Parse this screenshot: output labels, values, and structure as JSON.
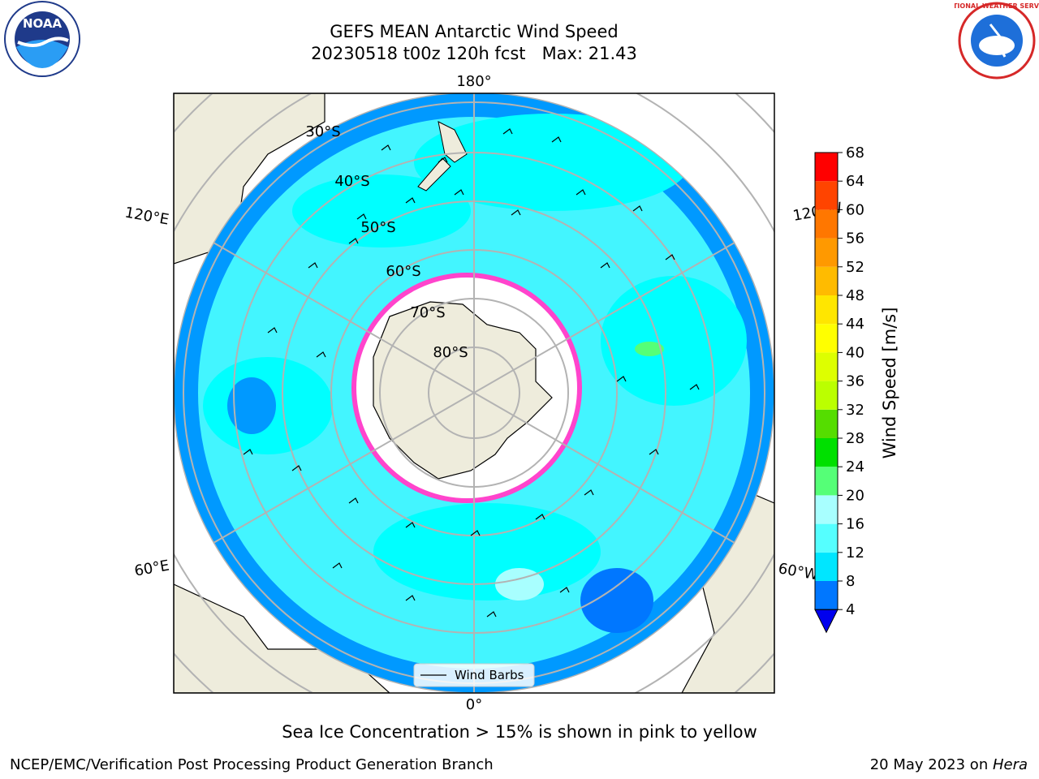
{
  "header": {
    "title_line1": "GEFS MEAN Antarctic Wind Speed",
    "title_line2": "20230518 t00z 120h fcst   Max: 21.43"
  },
  "logos": {
    "left": "NOAA",
    "right": "NATIONAL WEATHER SERVICE"
  },
  "map": {
    "projection": "south-polar-stereographic",
    "longitude_labels": {
      "top": "180°",
      "bottom": "0°",
      "upper_left": "120°E",
      "upper_right": "120°W",
      "lower_left": "60°E",
      "lower_right": "60°W"
    },
    "latitude_labels": [
      "30°S",
      "40°S",
      "50°S",
      "60°S",
      "70°S",
      "80°S"
    ],
    "legend": {
      "wind_barbs": "Wind Barbs"
    },
    "max_wind_speed": 21.43,
    "colors": {
      "land": "#eeecdc",
      "ocean_light": "#00ffff",
      "ocean_mid": "#43f5ff",
      "ocean_dark": "#0099ff",
      "sea_ice": "#ff44cc",
      "ice_white": "#ffffff",
      "grid": "#b3b3b3"
    }
  },
  "colorbar": {
    "label": "Wind Speed [m/s]",
    "ticks": [
      "4",
      "8",
      "12",
      "16",
      "20",
      "24",
      "28",
      "32",
      "36",
      "40",
      "44",
      "48",
      "52",
      "56",
      "60",
      "64",
      "68"
    ],
    "colors": [
      "#0077ff",
      "#00e6ff",
      "#55ffff",
      "#a8ffff",
      "#55ff77",
      "#00e000",
      "#55dd00",
      "#bbff00",
      "#ddff00",
      "#ffff00",
      "#ffe600",
      "#ffbb00",
      "#ff9900",
      "#ff7700",
      "#ff4400",
      "#ff0000"
    ],
    "extend_color": "#0000ee"
  },
  "caption": "Sea Ice Concentration > 15% is shown in pink to yellow",
  "footer": {
    "left": "NCEP/EMC/Verification Post Processing Product Generation Branch",
    "right_date": "20 May 2023 on ",
    "right_host": "Hera"
  }
}
